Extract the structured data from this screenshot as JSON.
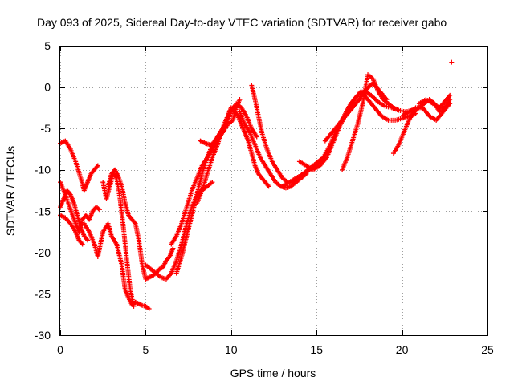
{
  "chart_data": {
    "type": "scatter",
    "title": "Day 093 of 2025, Sidereal Day-to-day VTEC variation (SDTVAR) for receiver gabo",
    "xlabel": "GPS time / hours",
    "ylabel": "SDTVAR / TECUs",
    "xlim": [
      0,
      25
    ],
    "ylim": [
      -30,
      5
    ],
    "xticks": [
      0,
      5,
      10,
      15,
      20,
      25
    ],
    "yticks": [
      -30,
      -25,
      -20,
      -15,
      -10,
      -5,
      0,
      5
    ],
    "grid": true,
    "marker": "+",
    "color": "#ff0000",
    "series": [
      {
        "x": [
          0.0,
          0.3,
          0.6,
          0.9,
          1.2,
          1.4,
          1.6,
          1.8,
          2.0,
          2.2
        ],
        "y": [
          -6.8,
          -6.5,
          -7.5,
          -9.0,
          -11.0,
          -12.5,
          -11.5,
          -10.5,
          -10.0,
          -9.5
        ]
      },
      {
        "x": [
          0.0,
          0.3,
          0.6,
          0.9,
          1.1,
          1.3,
          1.5,
          1.7,
          1.9,
          2.1,
          2.3
        ],
        "y": [
          -11.5,
          -13.0,
          -14.8,
          -16.5,
          -17.5,
          -16.0,
          -15.5,
          -16.0,
          -15.0,
          -14.5,
          -14.8
        ]
      },
      {
        "x": [
          0.0,
          0.2,
          0.4,
          0.6,
          0.8,
          1.0,
          1.2,
          1.4,
          1.6
        ],
        "y": [
          -14.5,
          -13.5,
          -12.5,
          -13.0,
          -14.0,
          -15.5,
          -17.0,
          -18.0,
          -18.5
        ]
      },
      {
        "x": [
          0.0,
          0.3,
          0.6,
          0.9,
          1.1,
          1.3
        ],
        "y": [
          -15.5,
          -15.8,
          -16.5,
          -17.5,
          -18.5,
          -19.0
        ]
      },
      {
        "x": [
          1.4,
          1.7,
          2.0,
          2.2,
          2.5,
          2.8,
          3.0,
          3.3,
          3.6,
          3.8,
          4.0,
          4.2,
          4.4,
          4.6,
          4.8,
          5.0,
          5.2
        ],
        "y": [
          -16.5,
          -17.5,
          -19.0,
          -20.5,
          -17.5,
          -16.5,
          -18.0,
          -19.0,
          -21.5,
          -24.5,
          -25.5,
          -26.3,
          -26.0,
          -26.2,
          -26.4,
          -26.5,
          -26.8
        ]
      },
      {
        "x": [
          2.5,
          2.7,
          2.9,
          3.1,
          3.3,
          3.5,
          3.7,
          3.9,
          4.1,
          4.3
        ],
        "y": [
          -11.5,
          -13.5,
          -12.0,
          -10.5,
          -11.0,
          -13.5,
          -17.0,
          -21.0,
          -24.5,
          -26.5
        ]
      },
      {
        "x": [
          2.8,
          3.0,
          3.2,
          3.4,
          3.6,
          3.8,
          4.0,
          4.2,
          4.4,
          4.6,
          4.8,
          5.0,
          5.2,
          5.4,
          5.6,
          5.8,
          6.0,
          6.2,
          6.4,
          6.6
        ],
        "y": [
          -12.0,
          -10.5,
          -10.0,
          -10.8,
          -12.0,
          -14.0,
          -15.5,
          -16.0,
          -16.5,
          -18.5,
          -21.5,
          -23.2,
          -23.0,
          -22.8,
          -22.5,
          -22.0,
          -21.8,
          -21.0,
          -20.5,
          -19.5
        ]
      },
      {
        "x": [
          5.0,
          5.3,
          5.6,
          5.9,
          6.2,
          6.5,
          6.8,
          7.1,
          7.4,
          7.7,
          8.0,
          8.3,
          8.6,
          8.9
        ],
        "y": [
          -21.5,
          -22.0,
          -22.5,
          -23.0,
          -23.2,
          -22.5,
          -21.0,
          -19.0,
          -16.5,
          -14.5,
          -13.0,
          -12.5,
          -12.0,
          -11.5
        ]
      },
      {
        "x": [
          6.5,
          6.8,
          7.1,
          7.4,
          7.7,
          8.0,
          8.3,
          8.6,
          8.9,
          9.2,
          9.5,
          9.8,
          10.1,
          10.3,
          10.5
        ],
        "y": [
          -19.0,
          -18.0,
          -16.5,
          -14.5,
          -12.5,
          -11.0,
          -9.5,
          -8.5,
          -7.5,
          -6.5,
          -5.5,
          -4.5,
          -4.0,
          -2.5,
          -1.5
        ]
      },
      {
        "x": [
          6.8,
          7.1,
          7.4,
          7.7,
          8.0,
          8.3,
          8.6,
          8.9,
          9.2,
          9.5,
          9.8,
          10.1
        ],
        "y": [
          -22.5,
          -20.5,
          -18.0,
          -15.5,
          -13.0,
          -10.5,
          -8.5,
          -7.0,
          -6.0,
          -5.0,
          -3.5,
          -2.5
        ]
      },
      {
        "x": [
          8.0,
          8.3,
          8.6,
          8.9,
          9.2,
          9.5,
          9.8,
          10.0,
          10.2,
          10.4,
          10.6,
          10.8,
          11.0,
          11.2,
          11.4,
          11.6,
          11.8,
          12.0,
          12.2
        ],
        "y": [
          -14.0,
          -12.5,
          -10.5,
          -8.5,
          -7.0,
          -5.0,
          -3.5,
          -2.5,
          -3.0,
          -3.5,
          -4.5,
          -5.5,
          -6.5,
          -8.0,
          -9.5,
          -10.5,
          -11.0,
          -11.5,
          -12.0
        ]
      },
      {
        "x": [
          8.2,
          8.5,
          8.8,
          9.1,
          9.4,
          9.7,
          10.0,
          10.3,
          10.6,
          10.9,
          11.2,
          11.5
        ],
        "y": [
          -6.5,
          -6.8,
          -7.0,
          -6.5,
          -5.5,
          -4.5,
          -3.0,
          -2.0,
          -2.5,
          -3.5,
          -5.0,
          -6.0
        ]
      },
      {
        "x": [
          10.5,
          10.8,
          11.1,
          11.4,
          11.7,
          12.0,
          12.3,
          12.6,
          12.9,
          13.2,
          13.5,
          13.8,
          14.1,
          14.4
        ],
        "y": [
          -3.0,
          -4.5,
          -5.5,
          -7.0,
          -8.5,
          -9.5,
          -10.5,
          -11.5,
          -12.0,
          -12.2,
          -12.0,
          -11.5,
          -11.0,
          -10.5
        ]
      },
      {
        "x": [
          11.2,
          11.4,
          11.6,
          11.8,
          12.1,
          12.4,
          12.7,
          13.0,
          13.3,
          13.6,
          13.9,
          14.2,
          14.5,
          14.8,
          15.1,
          15.4
        ],
        "y": [
          0.2,
          -1.5,
          -3.5,
          -5.5,
          -7.5,
          -9.0,
          -10.0,
          -11.0,
          -11.5,
          -11.5,
          -11.0,
          -10.5,
          -10.0,
          -9.5,
          -9.0,
          -8.5
        ]
      },
      {
        "x": [
          13.0,
          13.4,
          13.8,
          14.2,
          14.6,
          15.0,
          15.4,
          15.8,
          16.2,
          16.6,
          17.0,
          17.4,
          17.8,
          18.2,
          18.6,
          19.0,
          19.4,
          19.8,
          20.2,
          20.6
        ],
        "y": [
          -12.0,
          -11.5,
          -11.0,
          -10.5,
          -10.0,
          -9.5,
          -8.5,
          -7.0,
          -5.0,
          -3.5,
          -2.0,
          -1.0,
          -0.5,
          -1.0,
          -1.8,
          -2.3,
          -2.5,
          -2.8,
          -3.0,
          -2.8
        ]
      },
      {
        "x": [
          14.0,
          14.4,
          14.8,
          15.2,
          15.6,
          16.0,
          16.4,
          16.8,
          17.2,
          17.6,
          18.0,
          18.4,
          18.8,
          19.2,
          19.6,
          20.0,
          20.4,
          20.8
        ],
        "y": [
          -9.0,
          -9.5,
          -10.0,
          -9.5,
          -8.5,
          -6.5,
          -4.5,
          -3.0,
          -1.5,
          -0.5,
          -1.5,
          -2.5,
          -3.5,
          -4.0,
          -4.0,
          -3.8,
          -3.5,
          -3.2
        ]
      },
      {
        "x": [
          16.5,
          16.8,
          17.1,
          17.4,
          17.7,
          18.0,
          18.3,
          18.6,
          18.9,
          19.2,
          19.5,
          19.8
        ],
        "y": [
          -10.0,
          -8.5,
          -6.5,
          -4.5,
          -2.0,
          1.5,
          1.0,
          -0.5,
          -1.5,
          -2.0,
          -2.5,
          -2.8
        ]
      },
      {
        "x": [
          15.5,
          15.9,
          16.3,
          16.7,
          17.1,
          17.5,
          17.9,
          18.3,
          18.7,
          19.1
        ],
        "y": [
          -6.5,
          -5.5,
          -4.5,
          -3.5,
          -2.5,
          -1.5,
          -0.3,
          0.5,
          -0.5,
          -1.5
        ]
      },
      {
        "x": [
          19.5,
          19.8,
          20.1,
          20.4,
          20.7,
          21.0,
          21.3,
          21.6,
          21.9,
          22.2,
          22.5,
          22.8
        ],
        "y": [
          -8.0,
          -7.0,
          -5.5,
          -4.0,
          -3.0,
          -2.5,
          -2.0,
          -1.5,
          -2.0,
          -3.0,
          -2.5,
          -1.5
        ]
      },
      {
        "x": [
          20.0,
          20.4,
          20.8,
          21.2,
          21.6,
          22.0,
          22.4,
          22.8
        ],
        "y": [
          -3.5,
          -3.0,
          -2.5,
          -2.5,
          -3.5,
          -4.0,
          -3.0,
          -2.0
        ]
      },
      {
        "x": [
          21.0,
          21.4,
          21.8,
          22.2,
          22.6,
          22.8
        ],
        "y": [
          -2.0,
          -1.5,
          -2.0,
          -2.5,
          -1.5,
          -1.0
        ]
      },
      {
        "x": [
          22.9
        ],
        "y": [
          3.0
        ]
      }
    ]
  }
}
